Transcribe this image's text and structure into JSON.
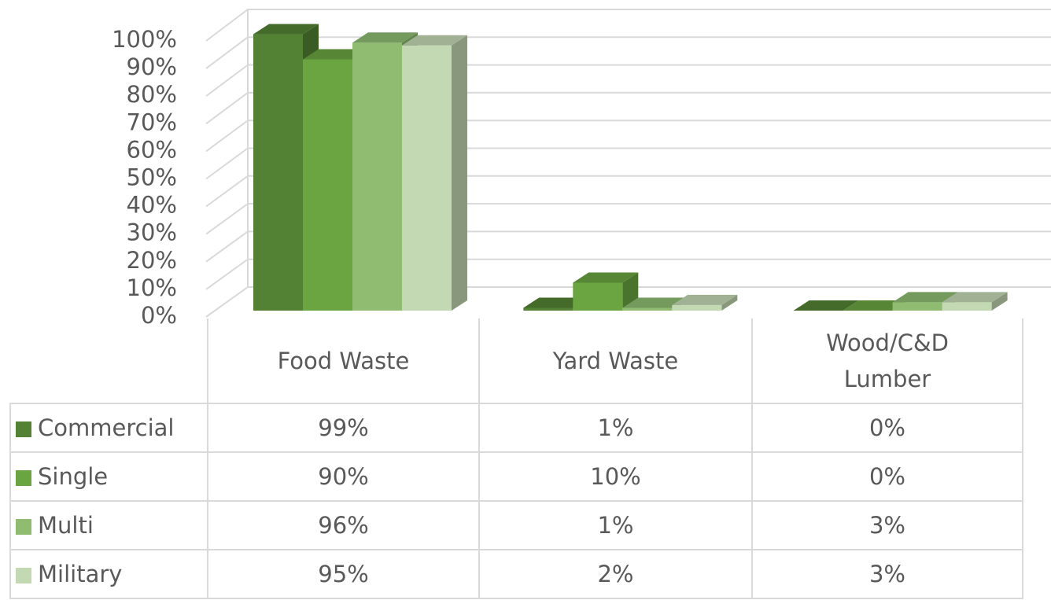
{
  "chart_data": {
    "type": "bar3d",
    "categories": [
      "Food Waste",
      "Yard Waste",
      "Wood/C&D Lumber"
    ],
    "series": [
      {
        "name": "Commercial",
        "color": "#548235",
        "values": [
          99,
          1,
          0
        ],
        "value_labels": [
          "99%",
          "1%",
          "0%"
        ]
      },
      {
        "name": "Single",
        "color": "#6aa541",
        "values": [
          90,
          10,
          0
        ],
        "value_labels": [
          "90%",
          "10%",
          "0%"
        ]
      },
      {
        "name": "Multi",
        "color": "#8fbc71",
        "values": [
          96,
          1,
          3
        ],
        "value_labels": [
          "96%",
          "1%",
          "3%"
        ]
      },
      {
        "name": "Military",
        "color": "#c3d9b3",
        "values": [
          95,
          2,
          3
        ],
        "value_labels": [
          "95%",
          "2%",
          "3%"
        ]
      }
    ],
    "ylim": [
      0,
      100
    ],
    "yticks": [
      {
        "value": 0,
        "label": "0%"
      },
      {
        "value": 10,
        "label": "10%"
      },
      {
        "value": 20,
        "label": "20%"
      },
      {
        "value": 30,
        "label": "30%"
      },
      {
        "value": 40,
        "label": "40%"
      },
      {
        "value": 50,
        "label": "50%"
      },
      {
        "value": 60,
        "label": "60%"
      },
      {
        "value": 70,
        "label": "70%"
      },
      {
        "value": 80,
        "label": "80%"
      },
      {
        "value": 90,
        "label": "90%"
      },
      {
        "value": 100,
        "label": "100%"
      }
    ],
    "grid": true
  }
}
